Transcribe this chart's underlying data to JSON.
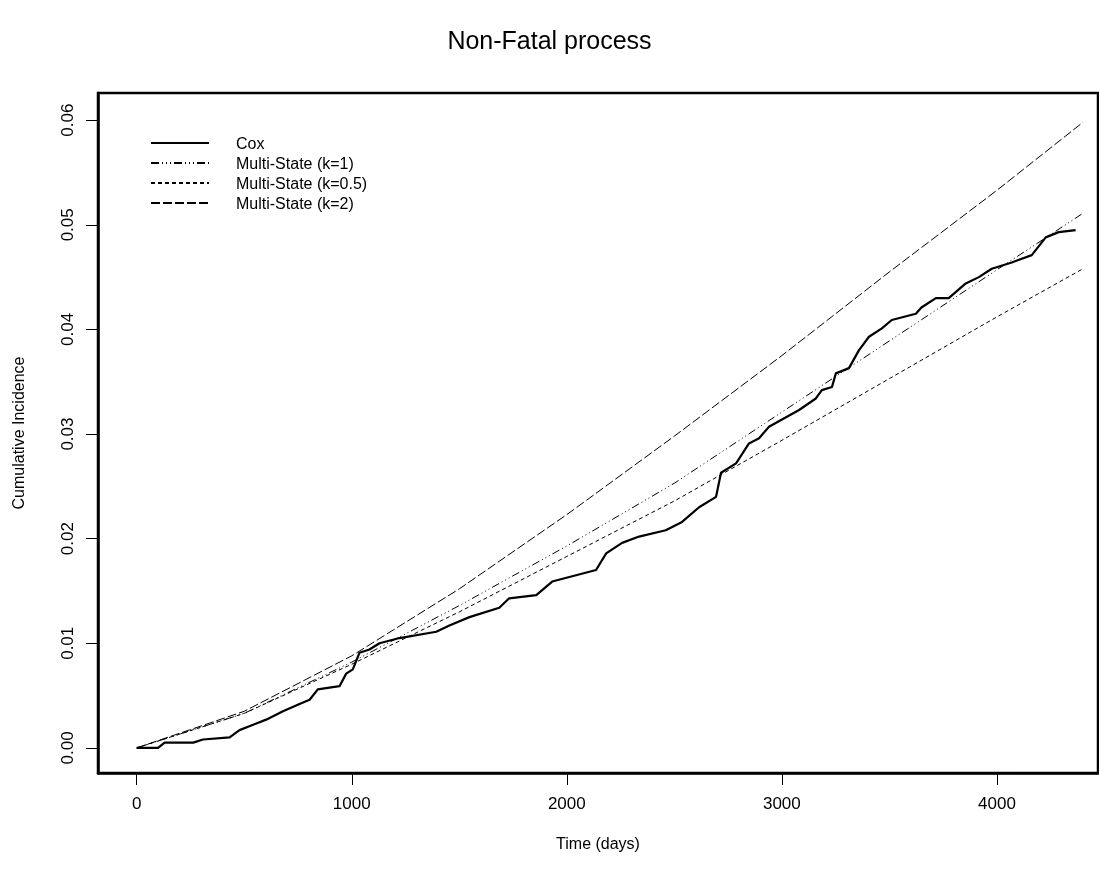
{
  "chart_data": {
    "type": "line",
    "title": "Non-Fatal process",
    "xlabel": "Time (days)",
    "ylabel": "Cumulative Incidence",
    "xlim": [
      -180,
      4470
    ],
    "ylim": [
      -0.0024,
      0.0626
    ],
    "xticks": [
      0,
      1000,
      2000,
      3000,
      4000
    ],
    "yticks": [
      {
        "value": 0,
        "label": "0.00"
      },
      0.01,
      0.02,
      0.03,
      0.04,
      0.05,
      0.06
    ],
    "grid": false,
    "legend": "top left",
    "marker": "none",
    "series": [
      {
        "name": "Cox",
        "color": "#000000",
        "line_style": "solid",
        "x": [
          0,
          99,
          130,
          263,
          308,
          432,
          478,
          602,
          680,
          757,
          804,
          842,
          943,
          974,
          1005,
          1036,
          1082,
          1129,
          1222,
          1393,
          1454,
          1547,
          1686,
          1732,
          1858,
          1932,
          2136,
          2183,
          2257,
          2336,
          2460,
          2536,
          2615,
          2694,
          2717,
          2787,
          2847,
          2894,
          2940,
          3080,
          3158,
          3186,
          3233,
          3251,
          3312,
          3358,
          3405,
          3465,
          3511,
          3623,
          3649,
          3716,
          3776,
          3855,
          3916,
          3976,
          4069,
          4162,
          4227,
          4287,
          4366
        ],
        "values": [
          0,
          0,
          0.0005,
          0.0005,
          0.0008,
          0.001,
          0.0017,
          0.0027,
          0.0035,
          0.0042,
          0.0046,
          0.0056,
          0.0059,
          0.0071,
          0.0075,
          0.0091,
          0.0094,
          0.01,
          0.0105,
          0.0111,
          0.0117,
          0.0125,
          0.0134,
          0.0143,
          0.0146,
          0.0159,
          0.017,
          0.0186,
          0.0196,
          0.0202,
          0.0208,
          0.0216,
          0.023,
          0.024,
          0.0263,
          0.0272,
          0.0291,
          0.0296,
          0.0307,
          0.0323,
          0.0334,
          0.0342,
          0.0345,
          0.0358,
          0.0363,
          0.038,
          0.0393,
          0.0401,
          0.0409,
          0.0415,
          0.0421,
          0.043,
          0.043,
          0.0444,
          0.045,
          0.0458,
          0.0464,
          0.0471,
          0.0488,
          0.0493,
          0.0495
        ]
      },
      {
        "name": "Multi-State (k=1)",
        "color": "#000000",
        "line_style": "dashdot",
        "x": [
          0,
          500,
          1000,
          1500,
          2000,
          2500,
          3000,
          3500,
          4000,
          4400
        ],
        "values": [
          0,
          0.0033,
          0.0082,
          0.0136,
          0.0193,
          0.0253,
          0.0321,
          0.0389,
          0.0457,
          0.0511
        ]
      },
      {
        "name": "Multi-State (k=0.5)",
        "color": "#000000",
        "line_style": "dotted",
        "x": [
          0,
          500,
          1000,
          1500,
          2000,
          2500,
          3000,
          3500,
          4000,
          4400
        ],
        "values": [
          0,
          0.0033,
          0.008,
          0.013,
          0.0183,
          0.0236,
          0.0294,
          0.0353,
          0.0412,
          0.0458
        ]
      },
      {
        "name": "Multi-State (k=2)",
        "color": "#000000",
        "line_style": "dashed",
        "x": [
          0,
          500,
          1000,
          1500,
          2000,
          2500,
          3000,
          3500,
          4000,
          4400
        ],
        "values": [
          0,
          0.0035,
          0.0088,
          0.0152,
          0.0223,
          0.0298,
          0.0375,
          0.0455,
          0.0533,
          0.0598
        ]
      }
    ]
  }
}
